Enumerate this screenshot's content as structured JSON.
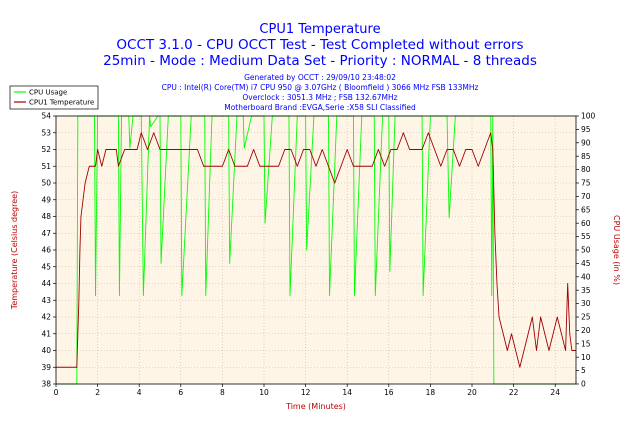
{
  "chart_data": {
    "type": "line",
    "title": "CPU1 Temperature",
    "subtitle_lines": [
      "OCCT 3.1.0 - CPU OCCT Test - Test Completed without errors",
      "25min - Mode : Medium Data Set - Priority : NORMAL - 8 threads"
    ],
    "info_lines": [
      "Generated by OCCT : 29/09/10 23:48:02",
      "CPU : Intel(R) Core(TM) i7 CPU 950 @ 3.07GHz ( Bloomfield ) 3066 MHz FSB 133MHz",
      "Overclock : 3051.3 MHz ; FSB 132.67MHz",
      "Motherboard Brand :EVGA,Serie :X58 SLI Classified"
    ],
    "xlabel": "Time (Minutes)",
    "ylabel_left": "Temperature (Celsius degree)",
    "ylabel_right": "CPU Usage (in %)",
    "xlim": [
      0,
      25
    ],
    "ylim_left": [
      38,
      54
    ],
    "ylim_right": [
      0,
      100
    ],
    "x_ticks": [
      "0",
      "2",
      "4",
      "6",
      "8",
      "10",
      "12",
      "14",
      "16",
      "18",
      "20",
      "22",
      "24"
    ],
    "y_left_ticks": [
      "38",
      "39",
      "40",
      "41",
      "42",
      "43",
      "44",
      "45",
      "46",
      "47",
      "48",
      "49",
      "50",
      "51",
      "52",
      "53",
      "54"
    ],
    "y_right_ticks": [
      "0",
      "5",
      "10",
      "15",
      "20",
      "25",
      "30",
      "35",
      "40",
      "45",
      "50",
      "55",
      "60",
      "65",
      "70",
      "75",
      "80",
      "85",
      "90",
      "95",
      "100"
    ],
    "grid": "dotted",
    "legend": "top-left",
    "colors": {
      "cpu_usage": "#00ff00",
      "temperature": "#a00000",
      "plot_background": "#fff5e6",
      "text_blue": "#0000ff",
      "axis_label": "#c00000"
    },
    "series": [
      {
        "name": "CPU Usage",
        "axis": "right",
        "x": [
          0,
          1,
          1.05,
          1.25,
          1.6,
          1.85,
          1.9,
          2.0,
          2.3,
          2.7,
          3.0,
          3.05,
          3.15,
          3.5,
          3.55,
          3.7,
          4.1,
          4.2,
          4.5,
          4.55,
          4.9,
          5.0,
          5.05,
          5.4,
          5.5,
          5.8,
          6.0,
          6.05,
          6.5,
          6.6,
          6.9,
          7.15,
          7.2,
          7.5,
          7.8,
          8.0,
          8.3,
          8.35,
          8.7,
          9.0,
          9.05,
          9.4,
          9.5,
          9.9,
          10.0,
          10.05,
          10.4,
          10.6,
          11.0,
          11.2,
          11.25,
          11.6,
          11.8,
          12.0,
          12.05,
          12.4,
          12.6,
          12.9,
          13.1,
          13.15,
          13.5,
          13.8,
          14.1,
          14.3,
          14.35,
          14.7,
          15.1,
          15.3,
          15.35,
          15.7,
          16.0,
          16.05,
          16.3,
          16.4,
          16.8,
          17.0,
          17.4,
          17.6,
          17.65,
          18.0,
          18.2,
          18.5,
          18.8,
          18.9,
          19.2,
          19.5,
          19.8,
          20.1,
          20.3,
          20.6,
          20.9,
          20.95,
          21.0,
          21.05,
          25
        ],
        "values": [
          0,
          0,
          100,
          100,
          100,
          100,
          33,
          100,
          100,
          100,
          100,
          33,
          100,
          100,
          88,
          100,
          100,
          33,
          100,
          96,
          100,
          100,
          45,
          100,
          100,
          100,
          100,
          33,
          100,
          100,
          100,
          100,
          33,
          100,
          100,
          100,
          100,
          45,
          100,
          100,
          88,
          100,
          100,
          100,
          100,
          60,
          100,
          100,
          100,
          100,
          33,
          100,
          100,
          100,
          50,
          100,
          100,
          100,
          100,
          33,
          100,
          100,
          100,
          100,
          33,
          100,
          100,
          100,
          33,
          100,
          100,
          42,
          100,
          100,
          100,
          100,
          100,
          100,
          33,
          100,
          100,
          100,
          100,
          62,
          100,
          100,
          100,
          100,
          100,
          100,
          100,
          33,
          100,
          0,
          0
        ]
      },
      {
        "name": "CPU1 Temperature",
        "axis": "left",
        "x": [
          0,
          1.0,
          1.05,
          1.1,
          1.15,
          1.2,
          1.3,
          1.4,
          1.6,
          1.9,
          2.0,
          2.2,
          2.4,
          2.6,
          2.9,
          3.0,
          3.3,
          3.6,
          3.9,
          4.1,
          4.4,
          4.7,
          5.0,
          5.3,
          5.6,
          5.9,
          6.2,
          6.5,
          6.8,
          7.1,
          7.4,
          7.7,
          8.0,
          8.3,
          8.6,
          8.9,
          9.2,
          9.5,
          9.8,
          10.1,
          10.4,
          10.7,
          11.0,
          11.3,
          11.6,
          11.9,
          12.2,
          12.5,
          12.8,
          13.1,
          13.4,
          13.7,
          14.0,
          14.3,
          14.6,
          14.9,
          15.2,
          15.5,
          15.8,
          16.1,
          16.4,
          16.7,
          17.0,
          17.3,
          17.6,
          17.9,
          18.2,
          18.5,
          18.8,
          19.1,
          19.4,
          19.7,
          20.0,
          20.3,
          20.6,
          20.9,
          21.0,
          21.1,
          21.2,
          21.3,
          21.5,
          21.7,
          21.9,
          22.1,
          22.3,
          22.5,
          22.7,
          22.9,
          23.1,
          23.3,
          23.5,
          23.7,
          23.9,
          24.1,
          24.3,
          24.5,
          24.6,
          24.7,
          24.8,
          25
        ],
        "values": [
          39,
          39,
          41,
          43,
          46,
          48,
          49,
          50,
          51,
          51,
          52,
          51,
          52,
          52,
          52,
          51,
          52,
          52,
          52,
          53,
          52,
          53,
          52,
          52,
          52,
          52,
          52,
          52,
          52,
          51,
          51,
          51,
          51,
          52,
          51,
          51,
          51,
          52,
          51,
          51,
          51,
          51,
          52,
          52,
          51,
          52,
          52,
          51,
          52,
          51,
          50,
          51,
          52,
          51,
          51,
          51,
          51,
          52,
          51,
          52,
          52,
          53,
          52,
          52,
          52,
          53,
          52,
          51,
          52,
          52,
          51,
          52,
          52,
          51,
          52,
          53,
          52,
          47,
          44,
          42,
          41,
          40,
          41,
          40,
          39,
          40,
          41,
          42,
          40,
          42,
          41,
          40,
          41,
          42,
          41,
          40,
          44,
          41,
          40,
          40
        ]
      }
    ]
  }
}
